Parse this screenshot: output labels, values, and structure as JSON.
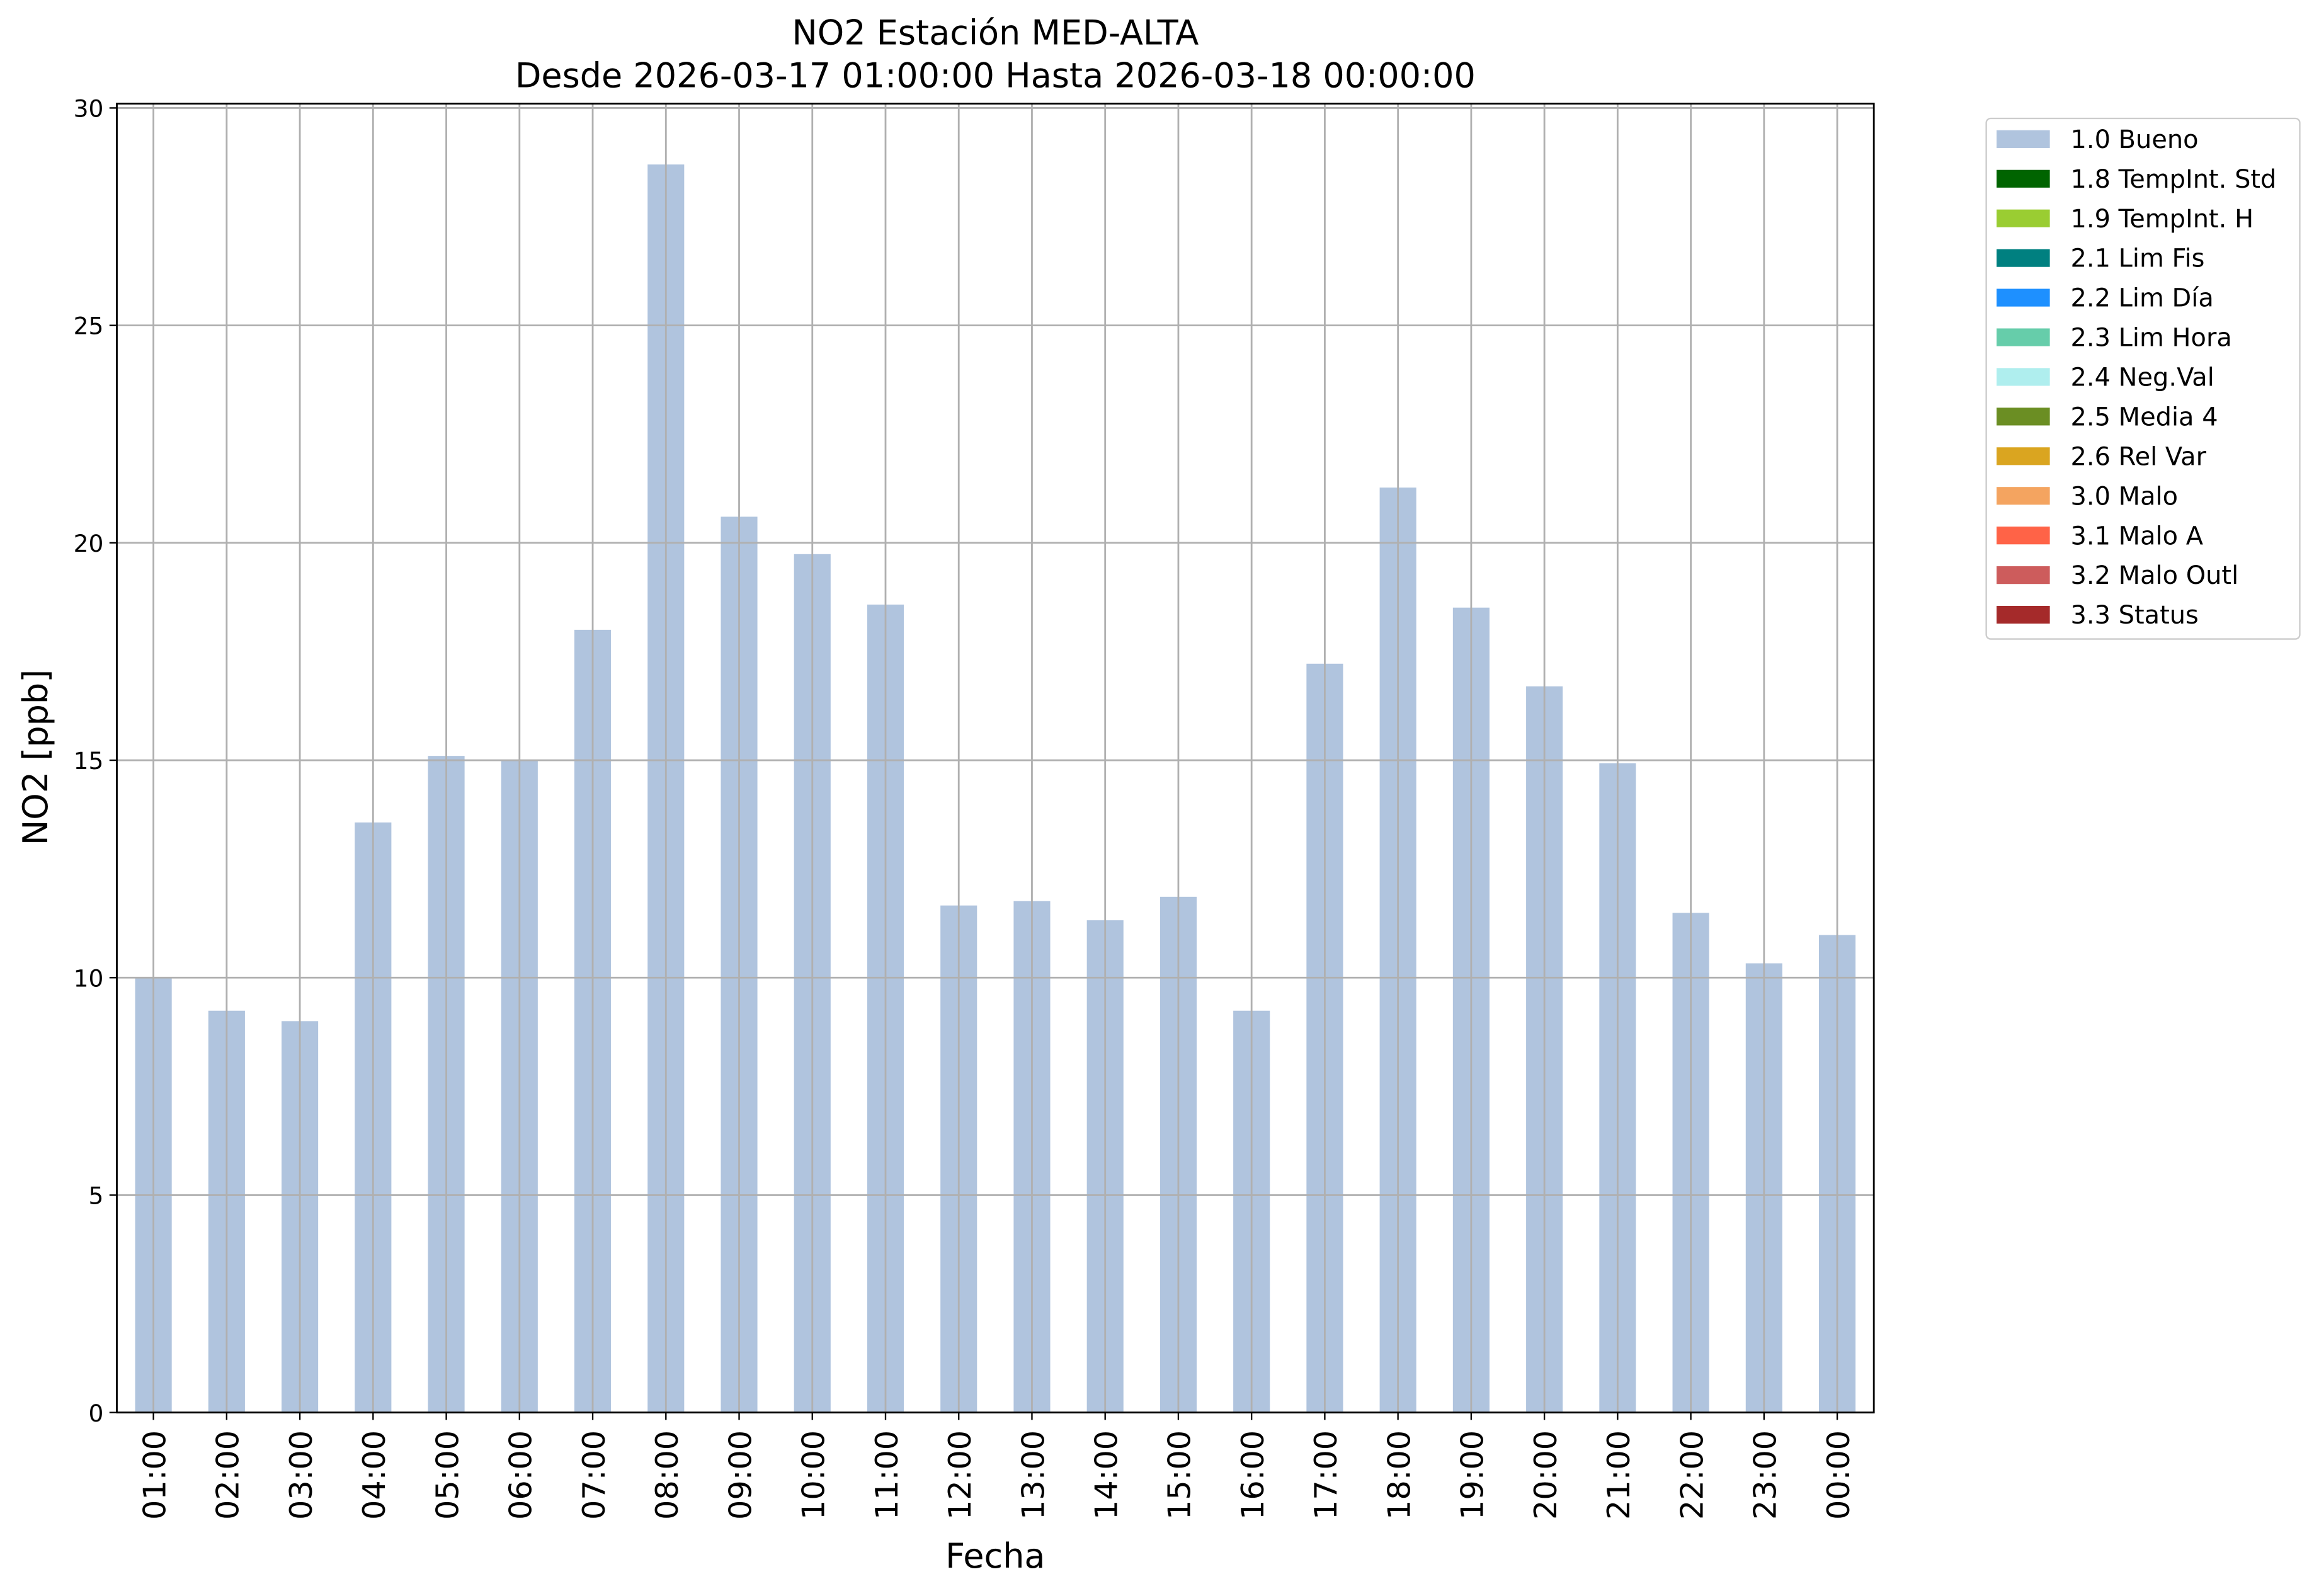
{
  "chart_data": {
    "type": "stacked-bar",
    "title": "NO2 Estación MED-ALTA",
    "subtitle": "Desde 2026-03-17 01:00:00 Hasta 2026-03-18 00:00:00",
    "x_label": "Fecha",
    "y_label": "NO2 [ppb]",
    "categories": [
      "01:00",
      "02:00",
      "03:00",
      "04:00",
      "05:00",
      "06:00",
      "07:00",
      "08:00",
      "09:00",
      "10:00",
      "11:00",
      "12:00",
      "13:00",
      "14:00",
      "15:00",
      "16:00",
      "17:00",
      "18:00",
      "19:00",
      "20:00",
      "21:00",
      "22:00",
      "23:00",
      "00:00"
    ],
    "series": [
      {
        "name": "1.0 Bueno",
        "color": "#b0c4de",
        "values": [
          10.0,
          9.24,
          9.0,
          13.57,
          15.1,
          15.0,
          18.0,
          28.7,
          20.6,
          19.74,
          18.58,
          11.66,
          11.76,
          11.32,
          11.86,
          9.24,
          17.22,
          21.27,
          18.51,
          16.7,
          14.93,
          11.49,
          10.33,
          10.98
        ]
      },
      {
        "name": "1.8 TempInt. Std",
        "color": "#006400",
        "values": [
          0,
          0,
          0,
          0,
          0,
          0,
          0,
          0,
          0,
          0,
          0,
          0,
          0,
          0,
          0,
          0,
          0,
          0,
          0,
          0,
          0,
          0,
          0,
          0
        ]
      },
      {
        "name": "1.9 TempInt. H",
        "color": "#9acd32",
        "values": [
          0,
          0,
          0,
          0,
          0,
          0,
          0,
          0,
          0,
          0,
          0,
          0,
          0,
          0,
          0,
          0,
          0,
          0,
          0,
          0,
          0,
          0,
          0,
          0
        ]
      },
      {
        "name": "2.1 Lim Fis",
        "color": "#008080",
        "values": [
          0,
          0,
          0,
          0,
          0,
          0,
          0,
          0,
          0,
          0,
          0,
          0,
          0,
          0,
          0,
          0,
          0,
          0,
          0,
          0,
          0,
          0,
          0,
          0
        ]
      },
      {
        "name": "2.2 Lim Día",
        "color": "#1e90ff",
        "values": [
          0,
          0,
          0,
          0,
          0,
          0,
          0,
          0,
          0,
          0,
          0,
          0,
          0,
          0,
          0,
          0,
          0,
          0,
          0,
          0,
          0,
          0,
          0,
          0
        ]
      },
      {
        "name": "2.3 Lim Hora",
        "color": "#66cdaa",
        "values": [
          0,
          0,
          0,
          0,
          0,
          0,
          0,
          0,
          0,
          0,
          0,
          0,
          0,
          0,
          0,
          0,
          0,
          0,
          0,
          0,
          0,
          0,
          0,
          0
        ]
      },
      {
        "name": "2.4 Neg.Val",
        "color": "#afeeee",
        "values": [
          0,
          0,
          0,
          0,
          0,
          0,
          0,
          0,
          0,
          0,
          0,
          0,
          0,
          0,
          0,
          0,
          0,
          0,
          0,
          0,
          0,
          0,
          0,
          0
        ]
      },
      {
        "name": "2.5 Media 4",
        "color": "#6b8e23",
        "values": [
          0,
          0,
          0,
          0,
          0,
          0,
          0,
          0,
          0,
          0,
          0,
          0,
          0,
          0,
          0,
          0,
          0,
          0,
          0,
          0,
          0,
          0,
          0,
          0
        ]
      },
      {
        "name": "2.6 Rel Var",
        "color": "#daa520",
        "values": [
          0,
          0,
          0,
          0,
          0,
          0,
          0,
          0,
          0,
          0,
          0,
          0,
          0,
          0,
          0,
          0,
          0,
          0,
          0,
          0,
          0,
          0,
          0,
          0
        ]
      },
      {
        "name": "3.0 Malo",
        "color": "#f4a460",
        "values": [
          0,
          0,
          0,
          0,
          0,
          0,
          0,
          0,
          0,
          0,
          0,
          0,
          0,
          0,
          0,
          0,
          0,
          0,
          0,
          0,
          0,
          0,
          0,
          0
        ]
      },
      {
        "name": "3.1 Malo A",
        "color": "#ff6347",
        "values": [
          0,
          0,
          0,
          0,
          0,
          0,
          0,
          0,
          0,
          0,
          0,
          0,
          0,
          0,
          0,
          0,
          0,
          0,
          0,
          0,
          0,
          0,
          0,
          0
        ]
      },
      {
        "name": "3.2 Malo Outl",
        "color": "#cd5c5c",
        "values": [
          0,
          0,
          0,
          0,
          0,
          0,
          0,
          0,
          0,
          0,
          0,
          0,
          0,
          0,
          0,
          0,
          0,
          0,
          0,
          0,
          0,
          0,
          0,
          0
        ]
      },
      {
        "name": "3.3 Status",
        "color": "#a52a2a",
        "values": [
          0,
          0,
          0,
          0,
          0,
          0,
          0,
          0,
          0,
          0,
          0,
          0,
          0,
          0,
          0,
          0,
          0,
          0,
          0,
          0,
          0,
          0,
          0,
          0
        ]
      }
    ],
    "ylim": [
      0,
      30.1
    ],
    "yticks": [
      0,
      5,
      10,
      15,
      20,
      25,
      30
    ],
    "grid": true,
    "legend": "outside-upper-right"
  }
}
